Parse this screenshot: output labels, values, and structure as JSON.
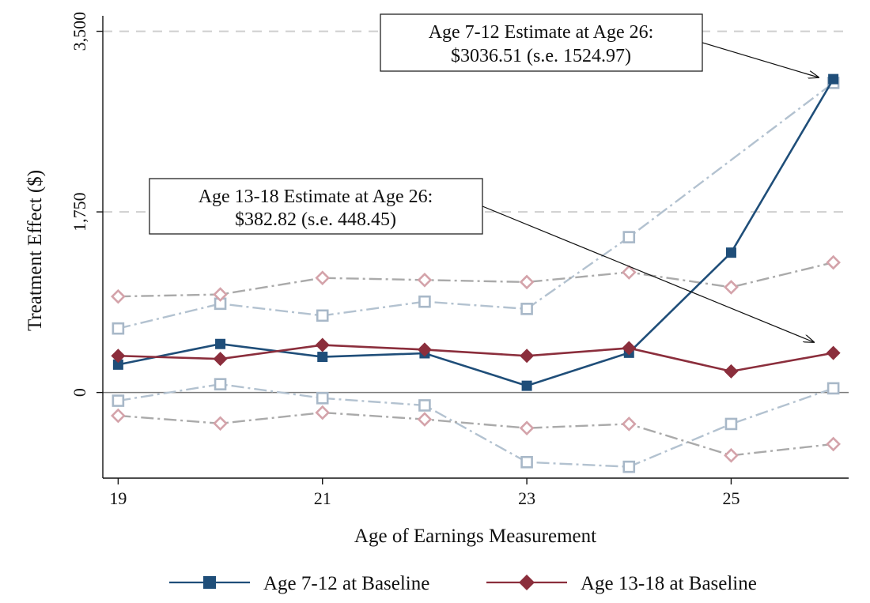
{
  "chart_data": {
    "type": "line",
    "xlabel": "Age of Earnings Measurement",
    "ylabel": "Treatment Effect ($)",
    "xlim": [
      18.85,
      26.15
    ],
    "ylim": [
      -830,
      3650
    ],
    "x_ticks": [
      19,
      21,
      23,
      25
    ],
    "x_tick_labels": [
      "19",
      "21",
      "23",
      "25"
    ],
    "y_ticks": [
      0,
      1750,
      3500
    ],
    "y_tick_labels": [
      "0",
      "1,750",
      "3,500"
    ],
    "reference_lines": [
      1750,
      3500
    ],
    "x": [
      19,
      20,
      21,
      22,
      23,
      24,
      25,
      26
    ],
    "series": [
      {
        "name": "Age 7-12 at Baseline",
        "color": "#1f4e79",
        "marker": "square",
        "values": [
          270,
          470,
          345,
          380,
          65,
          385,
          1355,
          3036.51
        ],
        "ci_upper": [
          620,
          860,
          745,
          880,
          810,
          1505,
          null,
          3000
        ],
        "ci_lower": [
          -80,
          80,
          -55,
          -125,
          -675,
          -720,
          -305,
          40
        ]
      },
      {
        "name": "Age 13-18 at Baseline",
        "color": "#8b2e3c",
        "marker": "diamond",
        "values": [
          355,
          325,
          460,
          415,
          355,
          430,
          205,
          382.82
        ],
        "ci_upper": [
          930,
          950,
          1110,
          1090,
          1070,
          1165,
          1020,
          1260
        ],
        "ci_lower": [
          -225,
          -300,
          -195,
          -260,
          -345,
          -305,
          -610,
          -500
        ]
      }
    ],
    "annotations": [
      {
        "id": "a712",
        "lines": [
          "Age 7-12 Estimate at Age 26:",
          "$3036.51 (s.e. 1524.97)"
        ]
      },
      {
        "id": "a1318",
        "lines": [
          "Age 13-18 Estimate at Age 26:",
          "$382.82 (s.e. 448.45)"
        ]
      }
    ],
    "legend_position": "bottom"
  }
}
